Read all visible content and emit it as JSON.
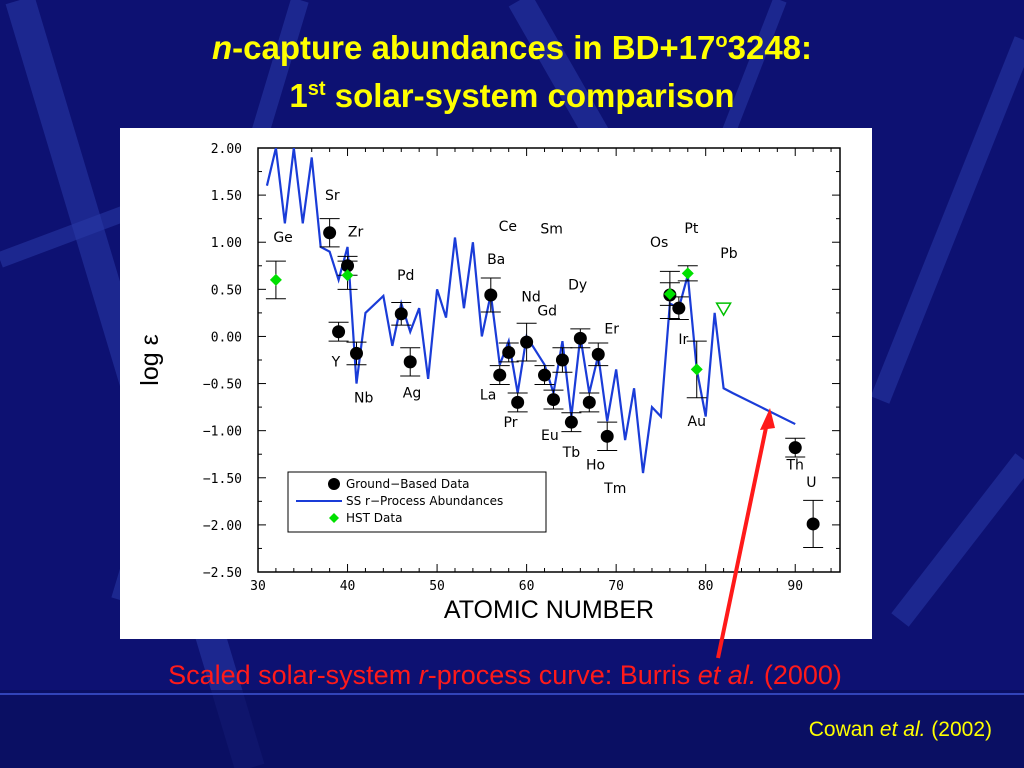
{
  "slide": {
    "title_line1_italic": "n",
    "title_line1_rest": "-capture abundances in BD+17",
    "title_line1_sup": "o",
    "title_line1_end": "3248:",
    "title_line2_start": "1",
    "title_line2_sup": "st",
    "title_line2_rest": " solar-system comparison",
    "caption_part1": "Scaled solar-system ",
    "caption_italic1": "r",
    "caption_part2": "-process curve: Burris ",
    "caption_italic2": "et al.",
    "caption_part3": " (2000)",
    "credit_part1": "Cowan ",
    "credit_italic": "et al.",
    "credit_part2": " (2002)",
    "colors": {
      "background": "#0d1172",
      "title": "#ffff00",
      "caption": "#ff1a1a",
      "arrow": "#ff1a1a"
    }
  },
  "chart_data": {
    "type": "scatter",
    "xlabel": "ATOMIC NUMBER",
    "ylabel": "log ε",
    "xlim": [
      30,
      95
    ],
    "ylim": [
      -2.5,
      2.0
    ],
    "x_ticks": [
      30,
      40,
      50,
      60,
      70,
      80,
      90
    ],
    "y_ticks": [
      2.0,
      1.5,
      1.0,
      0.5,
      0.0,
      -0.5,
      -1.0,
      -1.5,
      -2.0,
      -2.5
    ],
    "x_tick_labels": [
      "30",
      "40",
      "50",
      "60",
      "70",
      "80",
      "90"
    ],
    "y_tick_labels": [
      "2.00",
      "1.50",
      "1.00",
      "0.50",
      "0.00",
      "−0.50",
      "−1.00",
      "−1.50",
      "−2.00",
      "−2.50"
    ],
    "legend": [
      "Ground−Based Data",
      "SS r−Process Abundances",
      "HST Data"
    ],
    "legend_position": "bottom-center",
    "series": [
      {
        "name": "Ground−Based Data",
        "marker": "filled-circle",
        "color": "#000000",
        "points": [
          {
            "x": 38,
            "y": 1.1,
            "err": 0.15
          },
          {
            "x": 39,
            "y": 0.05,
            "err": 0.1
          },
          {
            "x": 40,
            "y": 0.75,
            "err": 0.1
          },
          {
            "x": 41,
            "y": -0.18,
            "err": 0.12
          },
          {
            "x": 46,
            "y": 0.24,
            "err": 0.12
          },
          {
            "x": 47,
            "y": -0.27,
            "err": 0.15
          },
          {
            "x": 56,
            "y": 0.44,
            "err": 0.18
          },
          {
            "x": 57,
            "y": -0.41,
            "err": 0.1
          },
          {
            "x": 58,
            "y": -0.17,
            "err": 0.1
          },
          {
            "x": 59,
            "y": -0.7,
            "err": 0.1
          },
          {
            "x": 60,
            "y": -0.06,
            "err": 0.2
          },
          {
            "x": 62,
            "y": -0.41,
            "err": 0.1
          },
          {
            "x": 63,
            "y": -0.67,
            "err": 0.1
          },
          {
            "x": 64,
            "y": -0.25,
            "err": 0.13
          },
          {
            "x": 65,
            "y": -0.91,
            "err": 0.1
          },
          {
            "x": 66,
            "y": -0.02,
            "err": 0.1
          },
          {
            "x": 67,
            "y": -0.7,
            "err": 0.1
          },
          {
            "x": 68,
            "y": -0.19,
            "err": 0.12
          },
          {
            "x": 69,
            "y": -1.06,
            "err": 0.15
          },
          {
            "x": 76,
            "y": 0.44,
            "err": 0.25
          },
          {
            "x": 77,
            "y": 0.3,
            "err": 0.12
          },
          {
            "x": 90,
            "y": -1.18,
            "err": 0.1
          },
          {
            "x": 92,
            "y": -1.99,
            "err": 0.25
          }
        ]
      },
      {
        "name": "SS r−Process Abundances",
        "marker": "line",
        "color": "#1a3cd8",
        "x": [
          31,
          32,
          33,
          34,
          35,
          36,
          37,
          38,
          39,
          40,
          41,
          42,
          44,
          45,
          46,
          47,
          48,
          49,
          50,
          51,
          52,
          53,
          54,
          55,
          56,
          57,
          58,
          59,
          60,
          62,
          63,
          64,
          65,
          66,
          67,
          68,
          69,
          70,
          71,
          72,
          73,
          74,
          75,
          76,
          77,
          78,
          79,
          80,
          81,
          82,
          83,
          90
        ],
        "y": [
          1.6,
          2.0,
          1.2,
          2.0,
          1.2,
          1.9,
          0.95,
          0.9,
          0.6,
          0.95,
          -0.5,
          0.25,
          0.43,
          -0.1,
          0.35,
          0.05,
          0.3,
          -0.45,
          0.5,
          0.2,
          1.05,
          0.3,
          1.0,
          0.0,
          0.45,
          -0.3,
          -0.05,
          -0.6,
          0.0,
          -0.3,
          -0.6,
          -0.05,
          -0.85,
          0.0,
          -0.6,
          -0.2,
          -0.9,
          -0.35,
          -1.1,
          -0.55,
          -1.45,
          -0.75,
          -0.85,
          0.35,
          0.3,
          0.65,
          -0.35,
          -0.85,
          0.25,
          -0.55,
          -0.6,
          -0.93
        ]
      },
      {
        "name": "HST Data",
        "marker": "diamond",
        "color": "#00e000",
        "points": [
          {
            "x": 32,
            "y": 0.6,
            "err": 0.2
          },
          {
            "x": 40,
            "y": 0.65,
            "err": 0.15
          },
          {
            "x": 76,
            "y": 0.45,
            "err": 0.12
          },
          {
            "x": 78,
            "y": 0.67,
            "err": 0.08
          },
          {
            "x": 79,
            "y": -0.35,
            "err": 0.3
          }
        ]
      },
      {
        "name": "Pb",
        "marker": "open-triangle-down",
        "color": "#00c000",
        "points": [
          {
            "x": 82,
            "y": 0.3
          }
        ]
      }
    ],
    "element_labels": [
      {
        "text": "Ge",
        "x": 32.8,
        "y": 1.0
      },
      {
        "text": "Sr",
        "x": 38.3,
        "y": 1.45
      },
      {
        "text": "Zr",
        "x": 40.9,
        "y": 1.06
      },
      {
        "text": "Y",
        "x": 38.7,
        "y": -0.32
      },
      {
        "text": "Nb",
        "x": 41.8,
        "y": -0.7
      },
      {
        "text": "Pd",
        "x": 46.5,
        "y": 0.6
      },
      {
        "text": "Ag",
        "x": 47.2,
        "y": -0.65
      },
      {
        "text": "Ce",
        "x": 57.9,
        "y": 1.12
      },
      {
        "text": "Sm",
        "x": 62.8,
        "y": 1.09
      },
      {
        "text": "Ba",
        "x": 56.6,
        "y": 0.77
      },
      {
        "text": "Nd",
        "x": 60.5,
        "y": 0.37
      },
      {
        "text": "Dy",
        "x": 65.7,
        "y": 0.5
      },
      {
        "text": "Gd",
        "x": 62.3,
        "y": 0.22
      },
      {
        "text": "Er",
        "x": 69.5,
        "y": 0.03
      },
      {
        "text": "La",
        "x": 55.7,
        "y": -0.67
      },
      {
        "text": "Pr",
        "x": 58.2,
        "y": -0.96
      },
      {
        "text": "Eu",
        "x": 62.6,
        "y": -1.1
      },
      {
        "text": "Tb",
        "x": 65.0,
        "y": -1.28
      },
      {
        "text": "Ho",
        "x": 67.7,
        "y": -1.41
      },
      {
        "text": "Tm",
        "x": 69.9,
        "y": -1.66
      },
      {
        "text": "Os",
        "x": 74.8,
        "y": 0.95
      },
      {
        "text": "Pt",
        "x": 78.4,
        "y": 1.1
      },
      {
        "text": "Pb",
        "x": 82.6,
        "y": 0.83
      },
      {
        "text": "Ir",
        "x": 77.5,
        "y": -0.08
      },
      {
        "text": "Au",
        "x": 79.0,
        "y": -0.95
      },
      {
        "text": "Th",
        "x": 90.0,
        "y": -1.41
      },
      {
        "text": "U",
        "x": 91.8,
        "y": -1.6
      }
    ]
  }
}
